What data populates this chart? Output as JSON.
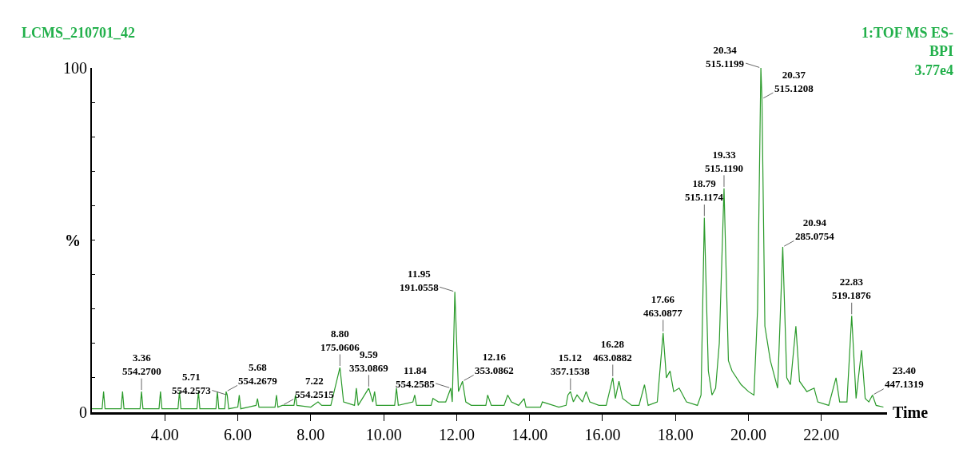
{
  "chart_data": {
    "type": "line",
    "title": "LCMS_210701_42",
    "subtitle": "1:TOF MS ES-\nBPI\n3.77e4",
    "xlabel": "Time",
    "ylabel": "%",
    "xlim": [
      2.0,
      23.8
    ],
    "ylim": [
      0,
      100
    ],
    "xticks": [
      {
        "value": 4,
        "label": "4.00"
      },
      {
        "value": 6,
        "label": "6.00"
      },
      {
        "value": 8,
        "label": "8.00"
      },
      {
        "value": 10,
        "label": "10.00"
      },
      {
        "value": 12,
        "label": "12.00"
      },
      {
        "value": 14,
        "label": "14.00"
      },
      {
        "value": 16,
        "label": "16.00"
      },
      {
        "value": 18,
        "label": "18.00"
      },
      {
        "value": 20,
        "label": "20.00"
      },
      {
        "value": 22,
        "label": "22.00"
      }
    ],
    "yticks": [
      0,
      {
        "value": 10,
        "label": null
      },
      {
        "value": 20,
        "label": null
      },
      {
        "value": 30,
        "label": null
      },
      {
        "value": 40,
        "label": null
      },
      {
        "value": 50,
        "label": null
      },
      {
        "value": 60,
        "label": null
      },
      {
        "value": 70,
        "label": null
      },
      {
        "value": 80,
        "label": null
      },
      {
        "value": 90,
        "label": null
      },
      100
    ],
    "marker": "none",
    "line_style": "solid",
    "series": [
      {
        "color": "#2a9a2a",
        "x": [
          2.0,
          2.28,
          2.32,
          2.36,
          2.8,
          2.84,
          2.88,
          3.32,
          3.36,
          3.4,
          3.84,
          3.88,
          3.92,
          4.36,
          4.4,
          4.44,
          4.88,
          4.92,
          4.96,
          5.4,
          5.44,
          5.48,
          5.64,
          5.68,
          5.71,
          5.75,
          6.0,
          6.04,
          6.08,
          6.5,
          6.54,
          6.58,
          7.02,
          7.06,
          7.1,
          7.22,
          7.54,
          7.58,
          7.62,
          8.0,
          8.2,
          8.3,
          8.55,
          8.8,
          8.9,
          9.2,
          9.25,
          9.3,
          9.59,
          9.7,
          9.75,
          9.8,
          10.3,
          10.35,
          10.4,
          10.8,
          10.85,
          10.9,
          11.3,
          11.35,
          11.5,
          11.7,
          11.84,
          11.88,
          11.95,
          12.05,
          12.16,
          12.25,
          12.4,
          12.8,
          12.85,
          12.95,
          13.3,
          13.4,
          13.5,
          13.7,
          13.85,
          13.9,
          14.3,
          14.35,
          14.8,
          15.0,
          15.05,
          15.12,
          15.2,
          15.3,
          15.45,
          15.55,
          15.65,
          15.9,
          16.1,
          16.28,
          16.35,
          16.45,
          16.55,
          16.8,
          17.0,
          17.15,
          17.25,
          17.5,
          17.66,
          17.75,
          17.85,
          17.95,
          18.1,
          18.3,
          18.6,
          18.7,
          18.79,
          18.9,
          19.0,
          19.1,
          19.2,
          19.33,
          19.45,
          19.55,
          19.8,
          20.0,
          20.15,
          20.25,
          20.34,
          20.37,
          20.45,
          20.6,
          20.8,
          20.94,
          21.05,
          21.15,
          21.3,
          21.4,
          21.6,
          21.8,
          21.9,
          22.2,
          22.4,
          22.5,
          22.7,
          22.83,
          22.95,
          23.1,
          23.2,
          23.3,
          23.4,
          23.5,
          23.7
        ],
        "values": [
          1,
          1,
          6,
          1,
          1,
          6,
          1,
          1,
          6,
          1,
          1,
          6,
          1,
          1,
          6,
          1,
          1,
          6,
          1,
          1,
          6,
          1,
          1,
          6,
          5,
          1,
          1.5,
          5,
          1,
          2,
          4,
          1.5,
          1.5,
          5,
          1.5,
          2,
          2,
          5,
          2,
          1.5,
          3,
          2,
          2,
          13,
          3,
          2,
          7,
          2,
          7,
          3,
          6,
          2,
          2,
          7,
          2,
          3,
          5,
          2,
          2,
          4,
          3,
          3,
          7,
          3,
          35,
          6,
          9,
          3,
          2,
          2,
          5,
          2,
          2,
          5,
          3,
          2,
          4,
          1.5,
          1.5,
          3,
          1.5,
          2,
          5,
          6,
          3,
          5,
          3,
          6,
          3,
          2,
          2,
          10,
          4,
          9,
          4,
          2,
          2,
          8,
          2,
          3,
          23,
          10,
          12,
          6,
          7,
          3,
          2,
          5,
          56.5,
          12,
          5,
          7,
          20,
          65,
          15,
          12,
          8,
          6,
          5,
          30,
          100,
          91,
          25,
          15,
          7,
          48,
          10,
          8,
          25,
          9,
          6,
          7,
          3,
          2,
          10,
          3,
          3,
          28,
          4,
          18,
          4,
          3,
          5,
          2,
          1.5
        ]
      }
    ],
    "annotations": [
      {
        "text": "3.36\n554.2700",
        "x": 3.36,
        "y": 6
      },
      {
        "text": "5.71\n554.2573",
        "x": 5.71,
        "y": 5
      },
      {
        "text": "5.68\n554.2679",
        "x": 5.68,
        "y": 6
      },
      {
        "text": "7.22\n554.2515",
        "x": 7.22,
        "y": 2
      },
      {
        "text": "8.80\n175.0606",
        "x": 8.8,
        "y": 13
      },
      {
        "text": "9.59\n353.0869",
        "x": 9.59,
        "y": 7
      },
      {
        "text": "11.84\n554.2585",
        "x": 11.84,
        "y": 7
      },
      {
        "text": "11.95\n191.0558",
        "x": 11.95,
        "y": 35
      },
      {
        "text": "12.16\n353.0862",
        "x": 12.16,
        "y": 9
      },
      {
        "text": "15.12\n357.1538",
        "x": 15.12,
        "y": 6
      },
      {
        "text": "16.28\n463.0882",
        "x": 16.28,
        "y": 10
      },
      {
        "text": "17.66\n463.0877",
        "x": 17.66,
        "y": 23
      },
      {
        "text": "18.79\n515.1174",
        "x": 18.79,
        "y": 56.5
      },
      {
        "text": "19.33\n515.1190",
        "x": 19.33,
        "y": 65
      },
      {
        "text": "20.34\n515.1199",
        "x": 20.34,
        "y": 100
      },
      {
        "text": "20.37\n515.1208",
        "x": 20.37,
        "y": 91
      },
      {
        "text": "20.94\n285.0754",
        "x": 20.94,
        "y": 48
      },
      {
        "text": "22.83\n519.1876",
        "x": 22.83,
        "y": 28
      },
      {
        "text": "23.40\n447.1319",
        "x": 23.4,
        "y": 5
      }
    ]
  }
}
